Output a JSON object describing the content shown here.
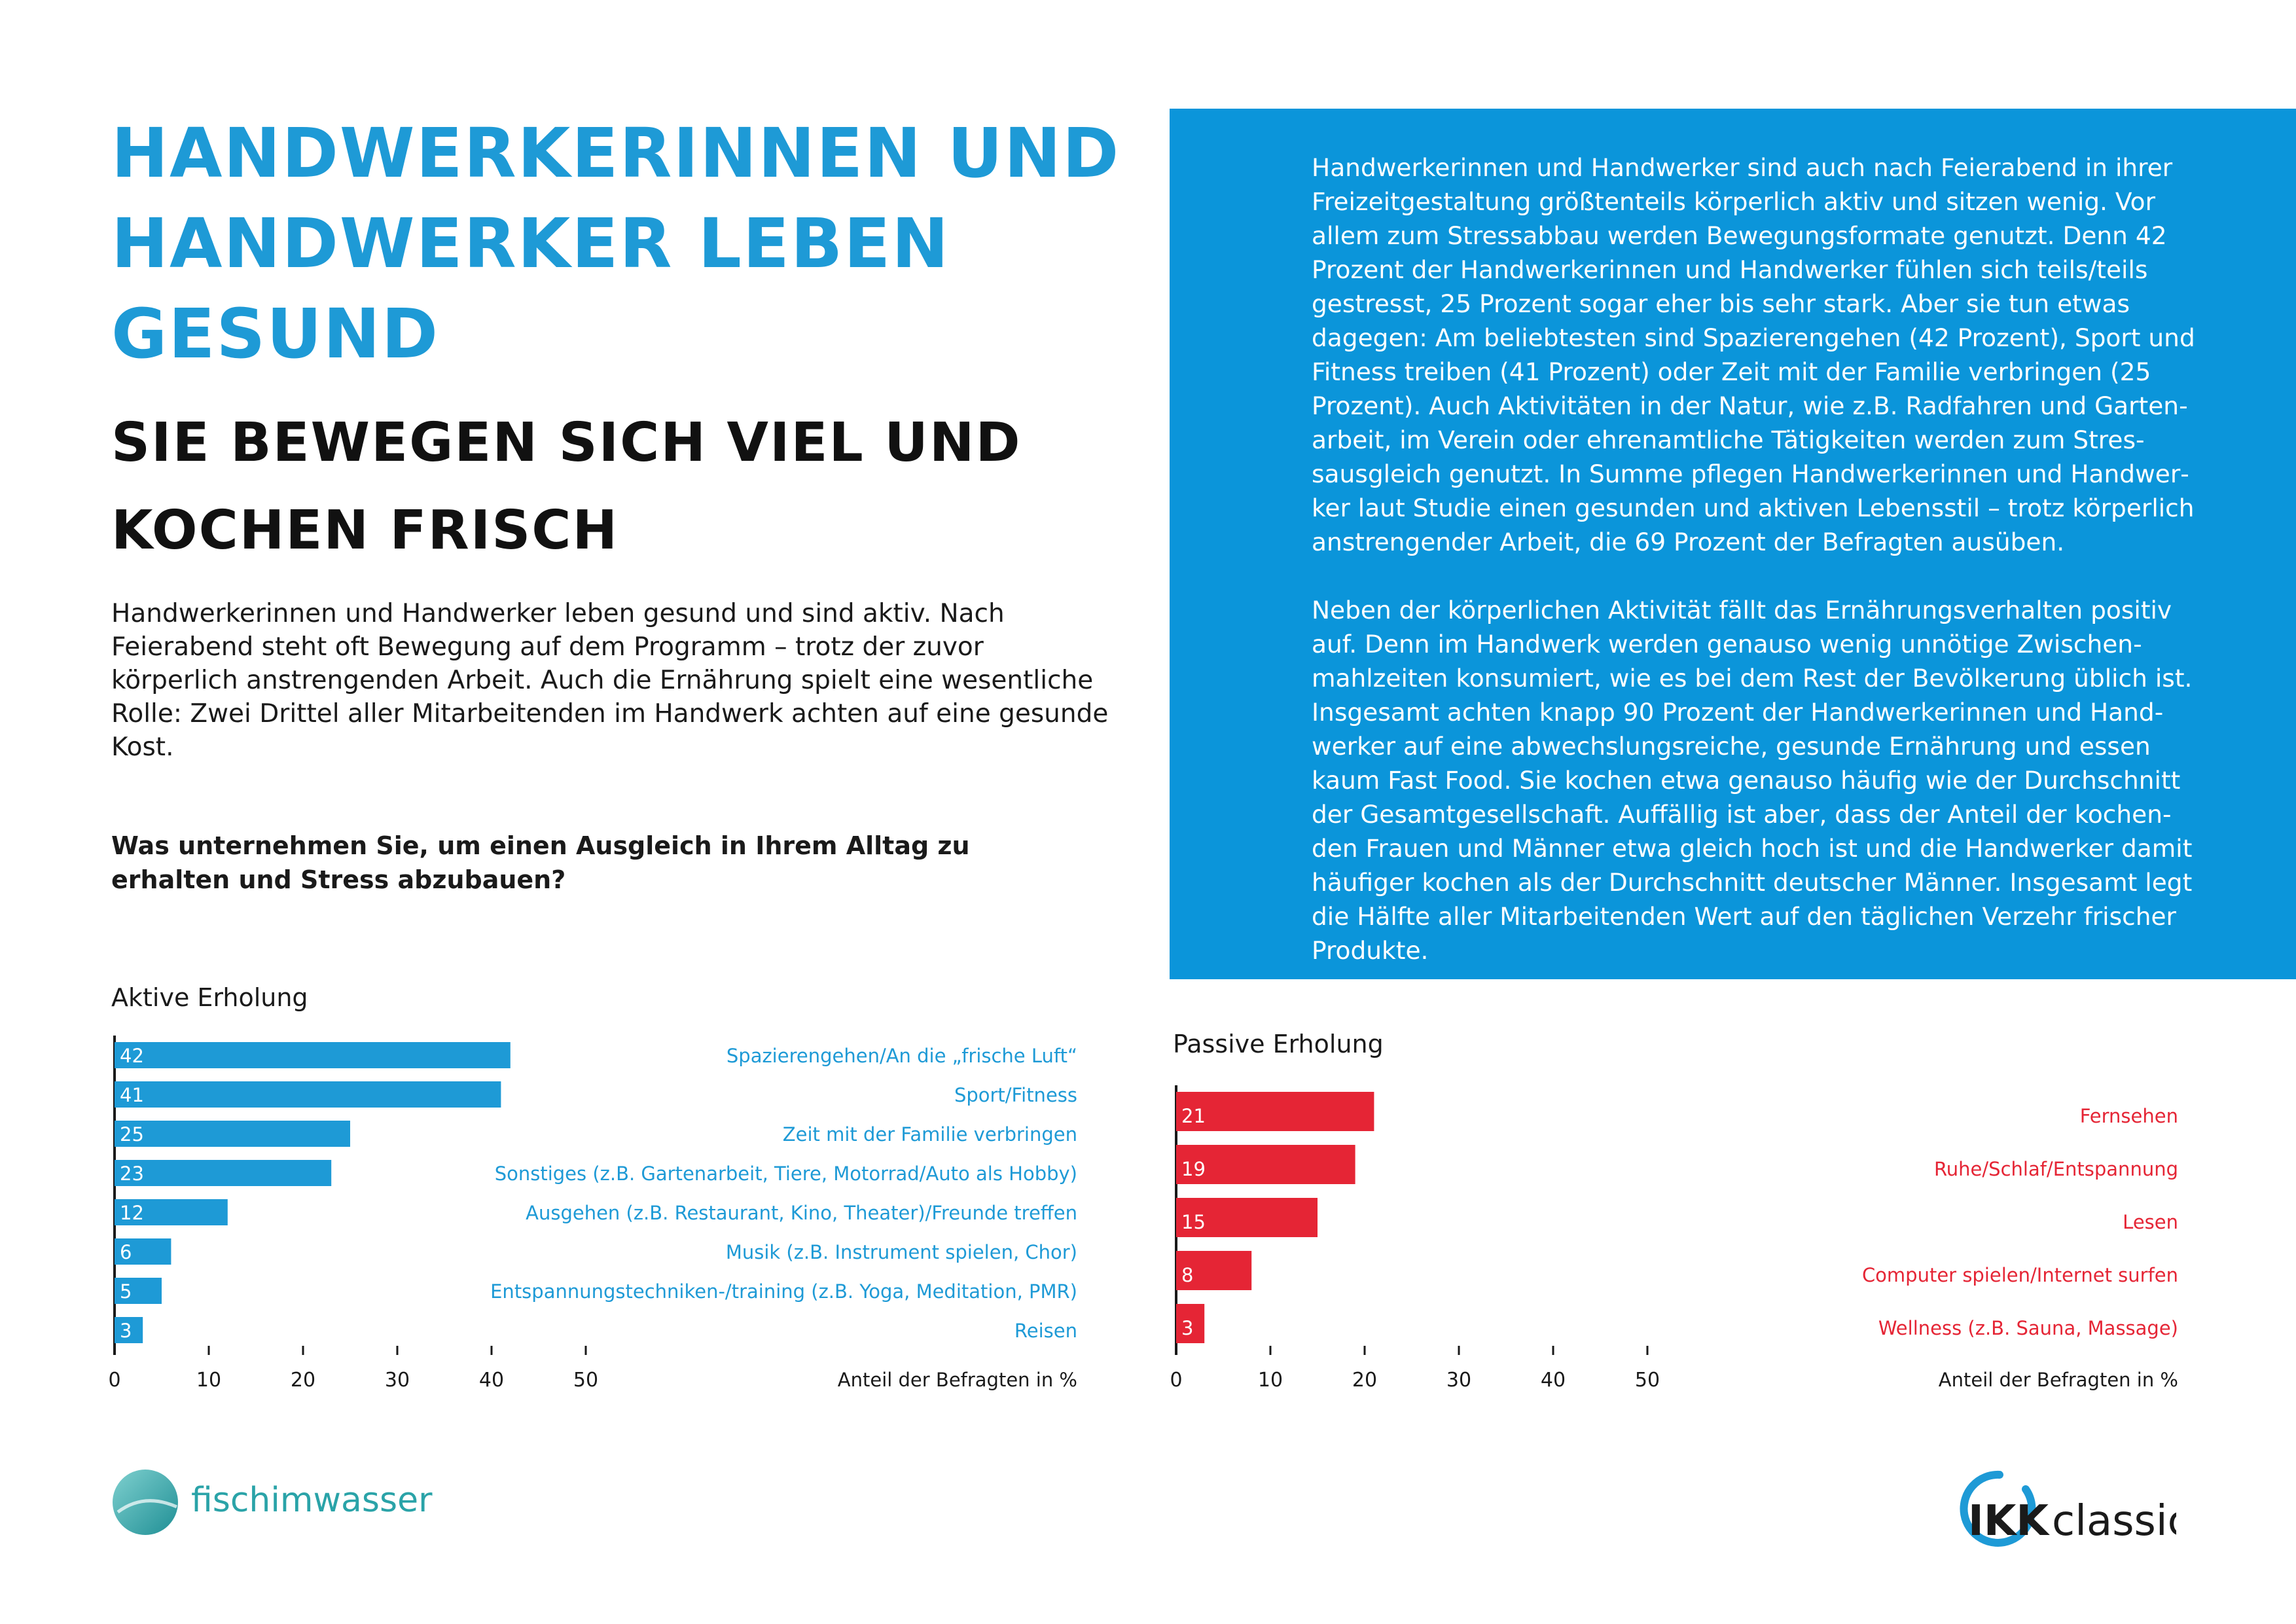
{
  "header": {
    "title": "Handwerkerinnen und Handwerker leben gesund",
    "subtitle": "Sie bewegen sich viel und kochen frisch"
  },
  "intro": "Handwerkerinnen und Handwerker leben gesund und sind aktiv. Nach Feierabend steht oft Bewegung auf dem Programm – trotz der zuvor körperlich anstrengenden Arbeit. Auch die Ernährung spielt eine wesentliche Rolle: Zwei Drittel aller Mitarbeitenden im Handwerk achten auf eine gesunde Kost.",
  "question": "Was unternehmen Sie, um einen Ausgleich in Ihrem Alltag zu erhalten und Stress abzubauen?",
  "box": {
    "paragraph1": "Handwerkerinnen und Handwerker sind auch nach Feierabend in ihrer Freizeitgestaltung größtenteils körperlich aktiv und sitzen wenig. Vor allem zum Stressabbau werden Bewegungsformate genutzt. Denn 42 Prozent der Handwerkerinnen und Handwerker fühlen sich teils/teils gestresst, 25 Prozent sogar eher bis sehr stark. Aber sie tun etwas dagegen: Am beliebtesten sind Spazierengehen (42 Prozent), Sport und Fitness treiben (41 Prozent) oder Zeit mit der Familie verbringen (25 Prozent). Auch Aktivitäten in der Natur, wie z.B. Radfahren und Garten­arbeit, im Verein oder ehrenamtliche Tätigkeiten werden zum Stres­sausgleich genutzt. In Summe pflegen Handwerkerinnen und Handwer­ker laut Studie einen gesunden und aktiven Lebensstil – trotz körper­lich anstrengender Arbeit, die 69 Prozent der Befragten ausüben.",
    "paragraph2": "Neben der körperlichen Aktivität fällt das Ernährungsverhalten positiv auf. Denn im Handwerk werden genauso wenig unnötige Zwischen­mahlzeiten konsumiert, wie es bei dem Rest der Bevölkerung üblich ist. Insgesamt achten knapp 90 Prozent der Handwerkerinnen und Hand­werker auf eine abwechslungsreiche, gesunde Ernährung und essen kaum Fast Food. Sie kochen etwa genauso häufig wie der Durchschnitt der Gesamtgesellschaft. Auffällig ist aber, dass der Anteil der kochen­den Frauen und Männer etwa gleich hoch ist und die Handwerker damit häufiger kochen als der Durchschnitt deutscher Männer. Insgesamt legt die Hälfte aller Mitarbeitenden Wert auf den täglichen Verzehr frischer Produkte."
  },
  "chart_data": [
    {
      "type": "bar",
      "orientation": "horizontal",
      "title": "Aktive Erholung",
      "xlabel": "Anteil der Befragten in %",
      "xlim": [
        0,
        50
      ],
      "xticks": [
        0,
        10,
        20,
        30,
        40,
        50
      ],
      "categories": [
        "Spazierengehen/An die „frische Luft“",
        "Sport/Fitness",
        "Zeit mit der Familie verbringen",
        "Sonstiges (z.B. Gartenarbeit, Tiere, Motorrad/Auto als Hobby)",
        "Ausgehen (z.B. Restaurant, Kino, Theater)/Freunde treffen",
        "Musik (z.B. Instrument spielen, Chor)",
        "Entspannungstechniken-/training (z.B. Yoga, Meditation, PMR)",
        "Reisen"
      ],
      "values": [
        42,
        41,
        25,
        23,
        12,
        6,
        5,
        3
      ],
      "color": "#1e9ad6",
      "grid": false
    },
    {
      "type": "bar",
      "orientation": "horizontal",
      "title": "Passive Erholung",
      "xlabel": "Anteil der Befragten in %",
      "xlim": [
        0,
        50
      ],
      "xticks": [
        0,
        10,
        20,
        30,
        40,
        50
      ],
      "categories": [
        "Fernsehen",
        "Ruhe/Schlaf/Entspannung",
        "Lesen",
        "Computer spielen/Internet surfen",
        "Wellness (z.B. Sauna, Massage)"
      ],
      "values": [
        21,
        19,
        15,
        8,
        3
      ],
      "color": "#e52535",
      "grid": false
    }
  ],
  "logos": {
    "left": "fischimwasser",
    "right_prefix": "IKK",
    "right_suffix": "classic"
  }
}
